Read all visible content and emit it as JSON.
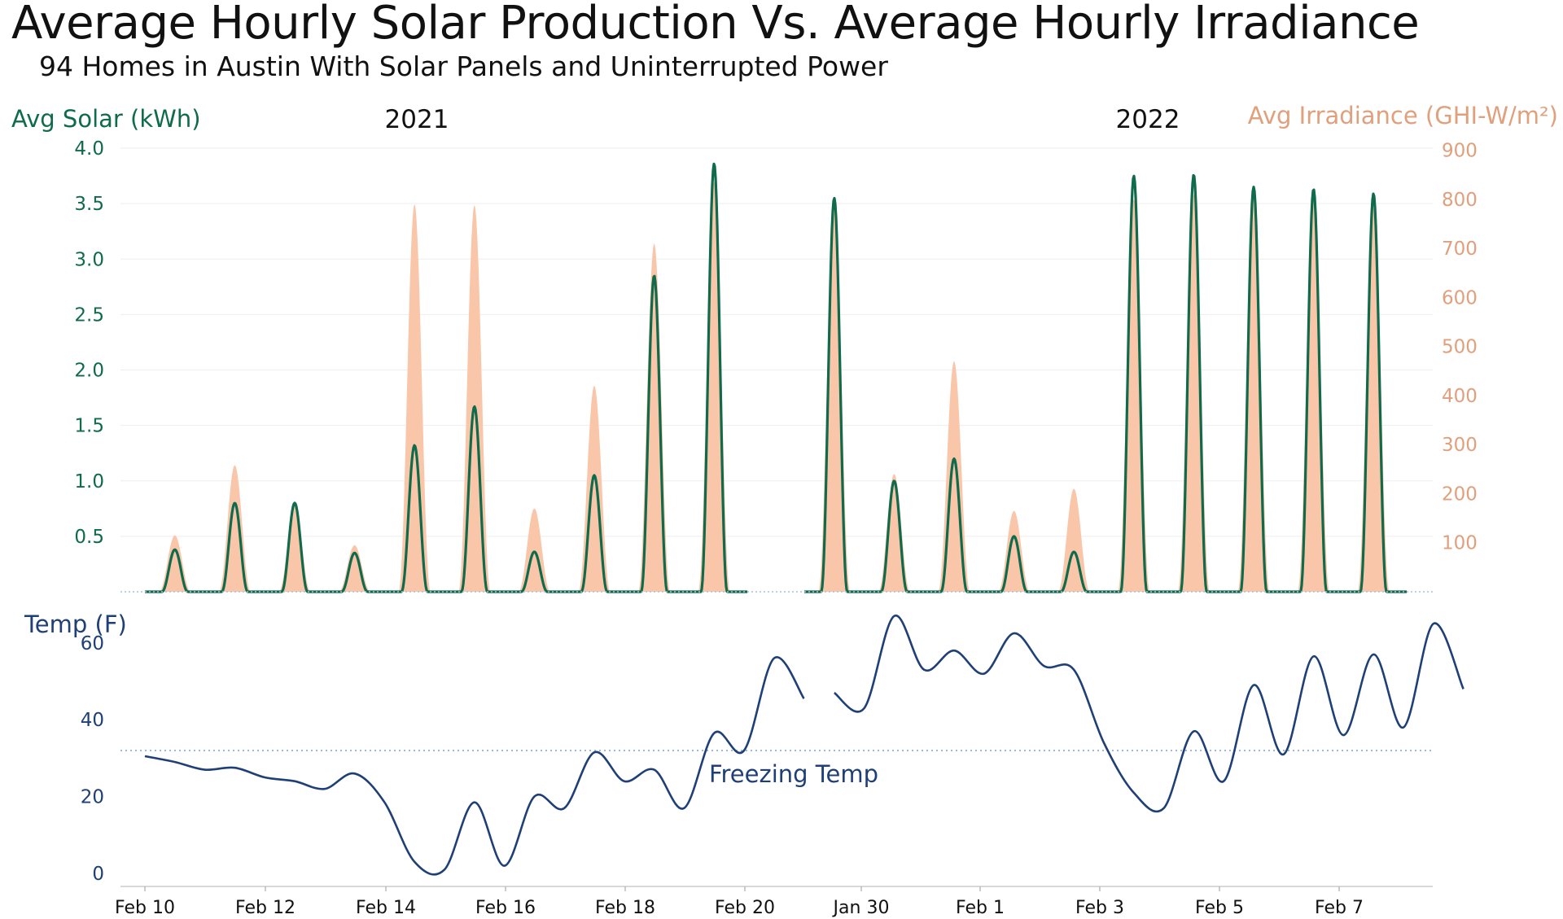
{
  "title": "Average Hourly Solar Production Vs. Average Hourly Irradiance",
  "subtitle": "94 Homes in Austin With Solar Panels and Uninterrupted Power",
  "colors": {
    "solar": "#0f6b4b",
    "irradiance": "#f9c6a9",
    "irradiance_axis": "#e0a07e",
    "temp": "#1f3f77",
    "freezing_line": "#9db8dd",
    "axis_solar_text": "#0f6b4b",
    "axis_temp_text": "#1f3f77"
  },
  "chart_data": [
    {
      "type": "line",
      "panel": "solar-irradiance",
      "ylabel_left": "Avg Solar (kWh)",
      "ylabel_right": "Avg Irradiance (GHI-W/m²)",
      "period_labels": [
        "2021",
        "2022"
      ],
      "ylim_left": [
        0,
        4.0
      ],
      "ylim_right": [
        0,
        900
      ],
      "yticks_left": [
        "0.5",
        "1.0",
        "1.5",
        "2.0",
        "2.5",
        "3.0",
        "3.5",
        "4.0"
      ],
      "yticks_right": [
        "100",
        "200",
        "300",
        "400",
        "500",
        "600",
        "700",
        "800",
        "900"
      ],
      "segments": [
        {
          "period": "2021",
          "x_range": [
            "Feb 10",
            "Feb 20"
          ],
          "days": [
            {
              "date": "Feb 10",
              "solar_peak": 0.38,
              "irradiance_peak": 115
            },
            {
              "date": "Feb 11",
              "solar_peak": 0.8,
              "irradiance_peak": 258
            },
            {
              "date": "Feb 12",
              "solar_peak": 0.8,
              "irradiance_peak": 175
            },
            {
              "date": "Feb 13",
              "solar_peak": 0.35,
              "irradiance_peak": 95
            },
            {
              "date": "Feb 14",
              "solar_peak": 1.32,
              "irradiance_peak": 790
            },
            {
              "date": "Feb 15",
              "solar_peak": 1.67,
              "irradiance_peak": 788
            },
            {
              "date": "Feb 16",
              "solar_peak": 0.36,
              "irradiance_peak": 170
            },
            {
              "date": "Feb 17",
              "solar_peak": 1.05,
              "irradiance_peak": 420
            },
            {
              "date": "Feb 18",
              "solar_peak": 2.85,
              "irradiance_peak": 710
            },
            {
              "date": "Feb 19",
              "solar_peak": 3.86,
              "irradiance_peak": 835
            }
          ]
        },
        {
          "period": "2022",
          "x_range": [
            "Jan 29",
            "Feb 8"
          ],
          "days": [
            {
              "date": "Jan 29",
              "solar_peak": 3.55,
              "irradiance_peak": 780
            },
            {
              "date": "Jan 30",
              "solar_peak": 1.0,
              "irradiance_peak": 240
            },
            {
              "date": "Jan 31",
              "solar_peak": 1.2,
              "irradiance_peak": 470
            },
            {
              "date": "Feb 1",
              "solar_peak": 0.5,
              "irradiance_peak": 165
            },
            {
              "date": "Feb 2",
              "solar_peak": 0.36,
              "irradiance_peak": 210
            },
            {
              "date": "Feb 3",
              "solar_peak": 3.75,
              "irradiance_peak": 800
            },
            {
              "date": "Feb 4",
              "solar_peak": 3.76,
              "irradiance_peak": 810
            },
            {
              "date": "Feb 5",
              "solar_peak": 3.65,
              "irradiance_peak": 800
            },
            {
              "date": "Feb 6",
              "solar_peak": 3.63,
              "irradiance_peak": 800
            },
            {
              "date": "Feb 7",
              "solar_peak": 3.59,
              "irradiance_peak": 800
            }
          ]
        }
      ]
    },
    {
      "type": "line",
      "panel": "temperature",
      "ylabel": "Temp (F)",
      "ylim": [
        -3,
        70
      ],
      "yticks": [
        "0",
        "20",
        "40",
        "60"
      ],
      "reference_line": {
        "value": 32,
        "label": "Freezing Temp"
      },
      "x_tick_labels": [
        "Feb 10",
        "Feb 12",
        "Feb 14",
        "Feb 16",
        "Feb 18",
        "Feb 20",
        "Jan 30",
        "Feb 1",
        "Feb 3",
        "Feb 5",
        "Feb 7"
      ],
      "segments": [
        {
          "period": "2021",
          "points": [
            [
              "Feb 10 00:00",
              30.5
            ],
            [
              "Feb 10 12:00",
              29
            ],
            [
              "Feb 11 00:00",
              27
            ],
            [
              "Feb 11 12:00",
              27.5
            ],
            [
              "Feb 12 00:00",
              25
            ],
            [
              "Feb 12 12:00",
              24
            ],
            [
              "Feb 13 00:00",
              22
            ],
            [
              "Feb 13 12:00",
              26
            ],
            [
              "Feb 14 00:00",
              18.5
            ],
            [
              "Feb 14 12:00",
              3
            ],
            [
              "Feb 15 00:00",
              1
            ],
            [
              "Feb 15 12:00",
              18.5
            ],
            [
              "Feb 16 00:00",
              2
            ],
            [
              "Feb 16 12:00",
              20
            ],
            [
              "Feb 17 00:00",
              17
            ],
            [
              "Feb 17 12:00",
              31.5
            ],
            [
              "Feb 18 00:00",
              24
            ],
            [
              "Feb 18 12:00",
              27
            ],
            [
              "Feb 19 00:00",
              17
            ],
            [
              "Feb 19 12:00",
              36.5
            ],
            [
              "Feb 20 00:00",
              32
            ],
            [
              "Feb 20 12:00",
              56
            ],
            [
              "Feb 21 00:00",
              45.5
            ]
          ]
        },
        {
          "period": "2022",
          "points": [
            [
              "Jan 29 12:00",
              47
            ],
            [
              "Jan 30 00:00",
              43
            ],
            [
              "Jan 30 12:00",
              67
            ],
            [
              "Jan 31 00:00",
              53
            ],
            [
              "Jan 31 12:00",
              58
            ],
            [
              "Feb 1 00:00",
              52
            ],
            [
              "Feb 1 12:00",
              62.5
            ],
            [
              "Feb 2 00:00",
              54
            ],
            [
              "Feb 2 12:00",
              53
            ],
            [
              "Feb 3 00:00",
              34
            ],
            [
              "Feb 3 12:00",
              21
            ],
            [
              "Feb 4 00:00",
              17
            ],
            [
              "Feb 4 12:00",
              37
            ],
            [
              "Feb 5 00:00",
              24
            ],
            [
              "Feb 5 12:00",
              49
            ],
            [
              "Feb 6 00:00",
              31
            ],
            [
              "Feb 6 12:00",
              56.5
            ],
            [
              "Feb 7 00:00",
              36
            ],
            [
              "Feb 7 12:00",
              57
            ],
            [
              "Feb 8 00:00",
              38
            ],
            [
              "Feb 8 12:00",
              65
            ],
            [
              "Feb 9 00:00",
              48
            ]
          ]
        }
      ]
    }
  ]
}
